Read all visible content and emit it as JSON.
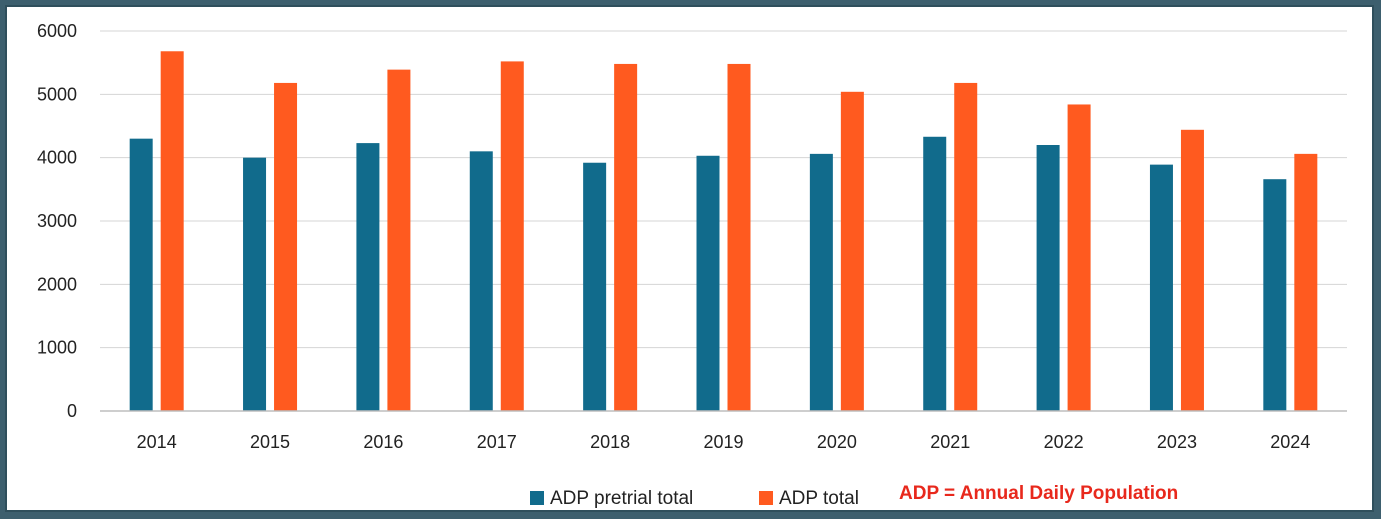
{
  "chart_data": {
    "type": "bar",
    "title": "",
    "xlabel": "",
    "ylabel": "",
    "categories": [
      "2014",
      "2015",
      "2016",
      "2017",
      "2018",
      "2019",
      "2020",
      "2021",
      "2022",
      "2023",
      "2024"
    ],
    "series": [
      {
        "name": "ADP pretrial total",
        "color": "#116b8c",
        "values": [
          4300,
          4000,
          4230,
          4100,
          3920,
          4030,
          4060,
          4330,
          4200,
          3890,
          3660
        ]
      },
      {
        "name": "ADP total",
        "color": "#ff5a1f",
        "values": [
          5680,
          5180,
          5390,
          5520,
          5480,
          5480,
          5040,
          5180,
          4840,
          4440,
          4060
        ]
      }
    ],
    "ylim": [
      0,
      6000
    ],
    "yticks": [
      "0",
      "1000",
      "2000",
      "3000",
      "4000",
      "5000",
      "6000"
    ],
    "grid": true,
    "legend_position": "bottom",
    "annotation": "ADP = Annual Daily Population"
  }
}
